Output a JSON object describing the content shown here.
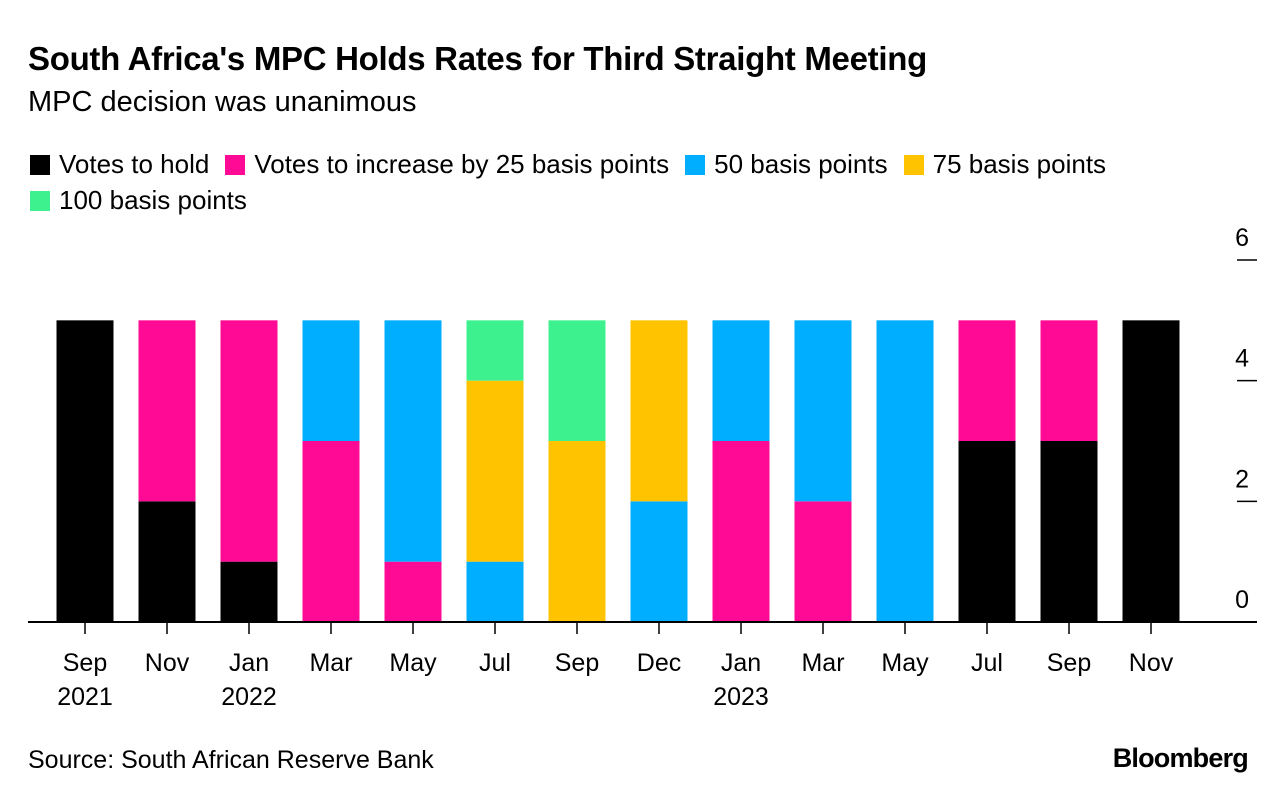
{
  "chart_data": {
    "type": "bar",
    "stacked": true,
    "title": "South Africa's MPC Holds Rates for Third Straight Meeting",
    "subtitle": "MPC decision was unanimous",
    "categories": [
      [
        "Sep",
        "2021"
      ],
      [
        "Nov",
        ""
      ],
      [
        "Jan",
        "2022"
      ],
      [
        "Mar",
        ""
      ],
      [
        "May",
        ""
      ],
      [
        "Jul",
        ""
      ],
      [
        "Sep",
        ""
      ],
      [
        "Dec",
        ""
      ],
      [
        "Jan",
        "2023"
      ],
      [
        "Mar",
        ""
      ],
      [
        "May",
        ""
      ],
      [
        "Jul",
        ""
      ],
      [
        "Sep",
        ""
      ],
      [
        "Nov",
        ""
      ]
    ],
    "series": [
      {
        "name": "Votes to hold",
        "color": "#000000",
        "values": [
          5,
          2,
          1,
          0,
          0,
          0,
          0,
          0,
          0,
          0,
          0,
          3,
          3,
          5
        ]
      },
      {
        "name": "Votes to increase by 25 basis points",
        "color": "#ff0a94",
        "values": [
          0,
          3,
          4,
          3,
          1,
          0,
          0,
          0,
          3,
          2,
          0,
          2,
          2,
          0
        ]
      },
      {
        "name": "50 basis points",
        "color": "#00aeff",
        "values": [
          0,
          0,
          0,
          2,
          4,
          1,
          0,
          2,
          2,
          3,
          5,
          0,
          0,
          0
        ]
      },
      {
        "name": "75 basis points",
        "color": "#ffc300",
        "values": [
          0,
          0,
          0,
          0,
          0,
          3,
          3,
          3,
          0,
          0,
          0,
          0,
          0,
          0
        ]
      },
      {
        "name": "100 basis points",
        "color": "#3ef18f",
        "values": [
          0,
          0,
          0,
          0,
          0,
          1,
          2,
          0,
          0,
          0,
          0,
          0,
          0,
          0
        ]
      }
    ],
    "ylim": [
      0,
      6
    ],
    "yticks": [
      0,
      2,
      4,
      6
    ],
    "yaxis_position": "right",
    "xlabel": "",
    "ylabel": ""
  },
  "source": "Source: South African Reserve Bank",
  "brand": "Bloomberg"
}
